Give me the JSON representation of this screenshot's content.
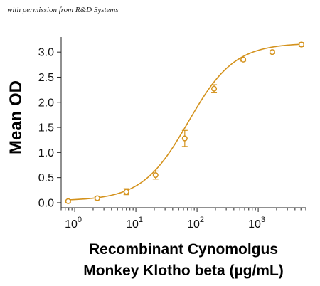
{
  "permission_text": "with permission from R&D Systems",
  "colors": {
    "series": "#D4921C",
    "axis": "#222222"
  },
  "chart_data": {
    "type": "scatter",
    "x_scale": "log",
    "xlabel_line1": "Recombinant Cynomolgus",
    "xlabel_line2": "Monkey Klotho beta (µg/mL)",
    "ylabel": "Mean OD",
    "xlim": [
      0.6,
      6000
    ],
    "ylim": [
      -0.1,
      3.3
    ],
    "x_ticks": [
      {
        "value": 1,
        "base": "10",
        "exp": "0"
      },
      {
        "value": 10,
        "base": "10",
        "exp": "1"
      },
      {
        "value": 100,
        "base": "10",
        "exp": "2"
      },
      {
        "value": 1000,
        "base": "10",
        "exp": "3"
      }
    ],
    "y_ticks": [
      {
        "value": 0.0,
        "label": "0.0"
      },
      {
        "value": 0.5,
        "label": "0.5"
      },
      {
        "value": 1.0,
        "label": "1.0"
      },
      {
        "value": 1.5,
        "label": "1.5"
      },
      {
        "value": 2.0,
        "label": "2.0"
      },
      {
        "value": 2.5,
        "label": "2.5"
      },
      {
        "value": 3.0,
        "label": "3.0"
      }
    ],
    "points": [
      {
        "x": 0.78,
        "y": 0.03,
        "err": 0.02
      },
      {
        "x": 2.34,
        "y": 0.09,
        "err": 0.03
      },
      {
        "x": 7.0,
        "y": 0.22,
        "err": 0.06
      },
      {
        "x": 21.0,
        "y": 0.55,
        "err": 0.08
      },
      {
        "x": 63.0,
        "y": 1.28,
        "err": 0.16
      },
      {
        "x": 190.0,
        "y": 2.27,
        "err": 0.08
      },
      {
        "x": 570.0,
        "y": 2.85,
        "err": 0.03
      },
      {
        "x": 1700.0,
        "y": 3.0,
        "err": 0.03
      },
      {
        "x": 5100.0,
        "y": 3.15,
        "err": 0.04
      }
    ],
    "fit": {
      "bottom": 0.04,
      "top": 3.18,
      "ec50": 72,
      "hill": 1.15
    }
  }
}
